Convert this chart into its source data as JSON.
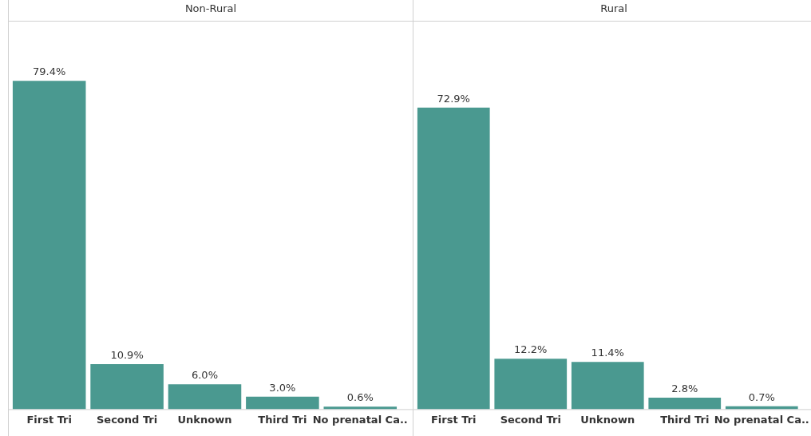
{
  "chart_data": [
    {
      "type": "bar",
      "title": "Non-Rural",
      "categories": [
        "First Tri",
        "Second Tri",
        "Unknown",
        "Third Tri",
        "No prenatal Ca.."
      ],
      "values": [
        79.4,
        10.9,
        6.0,
        3.0,
        0.6
      ],
      "value_labels": [
        "79.4%",
        "10.9%",
        "6.0%",
        "3.0%",
        "0.6%"
      ],
      "color": "#4a9990",
      "ylim": [
        0,
        94
      ],
      "grid": false,
      "legend": false,
      "tick_labels": "x"
    },
    {
      "type": "bar",
      "title": "Rural",
      "categories": [
        "First Tri",
        "Second Tri",
        "Unknown",
        "Third Tri",
        "No prenatal Ca.."
      ],
      "values": [
        72.9,
        12.2,
        11.4,
        2.8,
        0.7
      ],
      "value_labels": [
        "72.9%",
        "12.2%",
        "11.4%",
        "2.8%",
        "0.7%"
      ],
      "color": "#4a9990",
      "ylim": [
        0,
        94
      ],
      "grid": false,
      "legend": false,
      "tick_labels": "x"
    }
  ]
}
